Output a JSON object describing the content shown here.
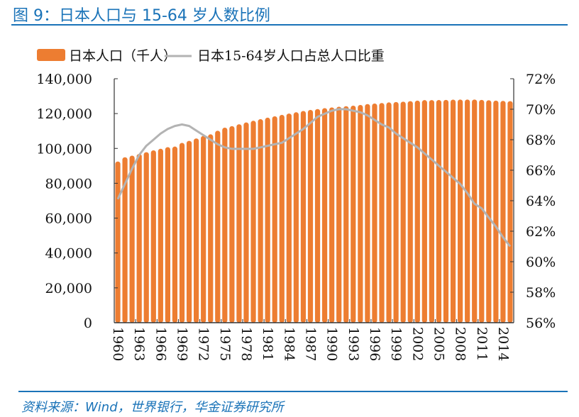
{
  "title": "图 9：日本人口与 15-64 岁人数比例",
  "source": "资料来源：Wind，世界银行，华金证券研究所",
  "chart_data": {
    "type": "bar+line",
    "title": "",
    "legend_position": "top",
    "grid": false,
    "categories": [
      1960,
      1961,
      1962,
      1963,
      1964,
      1965,
      1966,
      1967,
      1968,
      1969,
      1970,
      1971,
      1972,
      1973,
      1974,
      1975,
      1976,
      1977,
      1978,
      1979,
      1980,
      1981,
      1982,
      1983,
      1984,
      1985,
      1986,
      1987,
      1988,
      1989,
      1990,
      1991,
      1992,
      1993,
      1994,
      1995,
      1996,
      1997,
      1998,
      1999,
      2000,
      2001,
      2002,
      2003,
      2004,
      2005,
      2006,
      2007,
      2008,
      2009,
      2010,
      2011,
      2012,
      2013,
      2014,
      2015
    ],
    "x_tick_labels": [
      "1960",
      "1963",
      "1966",
      "1969",
      "1972",
      "1975",
      "1978",
      "1981",
      "1984",
      "1987",
      "1990",
      "1993",
      "1996",
      "1999",
      "2002",
      "2005",
      "2008",
      "2011",
      "2014"
    ],
    "y_left": {
      "range": [
        0,
        140000
      ],
      "ticks": [
        "0",
        "20,000",
        "40,000",
        "60,000",
        "80,000",
        "100,000",
        "120,000",
        "140,000"
      ]
    },
    "y_right": {
      "range": [
        56,
        72
      ],
      "ticks": [
        "56%",
        "58%",
        "60%",
        "62%",
        "64%",
        "66%",
        "68%",
        "70%",
        "72%"
      ]
    },
    "series": [
      {
        "name": "日本人口（千人）",
        "type": "bar",
        "axis": "left",
        "color": "#ed7d31",
        "values": [
          92500,
          94943,
          95832,
          96812,
          97826,
          98883,
          99790,
          100725,
          101061,
          103172,
          104345,
          105697,
          107188,
          108079,
          110162,
          111940,
          112771,
          113863,
          114898,
          115870,
          116782,
          117648,
          118449,
          119259,
          119998,
          120754,
          121492,
          122091,
          122613,
          123116,
          123537,
          123921,
          124229,
          124536,
          124961,
          125439,
          125757,
          126057,
          126400,
          126631,
          126843,
          127149,
          127445,
          127718,
          127761,
          127773,
          127854,
          128001,
          128063,
          128047,
          128070,
          127833,
          127629,
          127445,
          127276,
          127141
        ]
      },
      {
        "name": "日本15-64岁人口占总人口比重",
        "type": "line",
        "axis": "right",
        "color": "#b3b3b3",
        "values": [
          64.1,
          65.1,
          66.1,
          67.0,
          67.6,
          68.0,
          68.4,
          68.7,
          68.9,
          69.0,
          68.9,
          68.6,
          68.3,
          68.0,
          67.7,
          67.5,
          67.4,
          67.4,
          67.4,
          67.4,
          67.5,
          67.6,
          67.7,
          67.8,
          68.1,
          68.4,
          68.7,
          69.1,
          69.5,
          69.7,
          69.9,
          70.0,
          70.0,
          69.9,
          69.8,
          69.6,
          69.3,
          69.0,
          68.8,
          68.4,
          68.1,
          67.8,
          67.5,
          67.1,
          66.7,
          66.3,
          65.9,
          65.5,
          65.1,
          64.5,
          63.8,
          63.5,
          62.9,
          62.3,
          61.6,
          61.0
        ]
      }
    ]
  }
}
